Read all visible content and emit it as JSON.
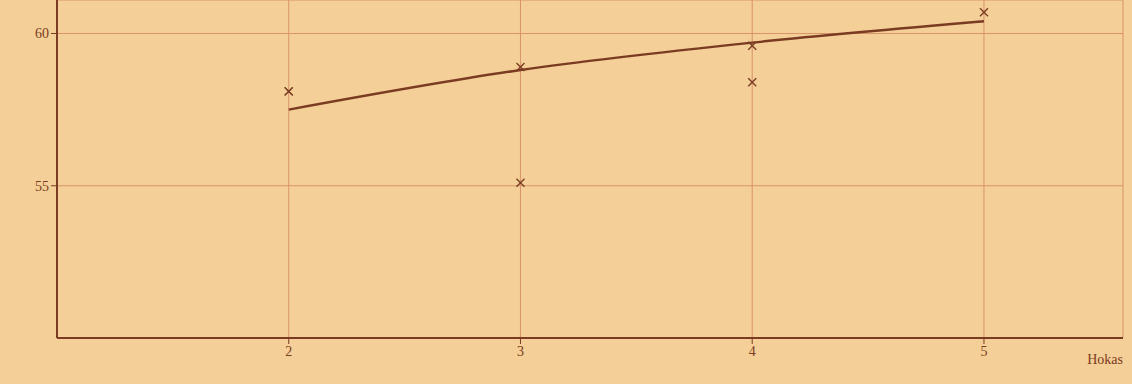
{
  "chart_data": {
    "type": "line",
    "x_label": "Hokas",
    "xlim": [
      1,
      5.6
    ],
    "xticks": [
      2,
      3,
      4,
      5
    ],
    "ylim": [
      50,
      61.1
    ],
    "yticks": [
      55,
      60
    ],
    "grid": true,
    "series": [
      {
        "type": "line",
        "color": "#7a3b22",
        "line_style": "solid",
        "marker": "none",
        "x": [
          2,
          3,
          4,
          5
        ],
        "values": [
          57.5,
          58.8,
          59.7,
          60.4
        ]
      },
      {
        "type": "scatter",
        "color": "#7a3b22",
        "marker": "x",
        "x": [
          2,
          2,
          3,
          3,
          4,
          4,
          5
        ],
        "values": [
          58.1,
          58.1,
          58.9,
          55.1,
          59.6,
          58.4,
          60.7
        ]
      }
    ]
  }
}
